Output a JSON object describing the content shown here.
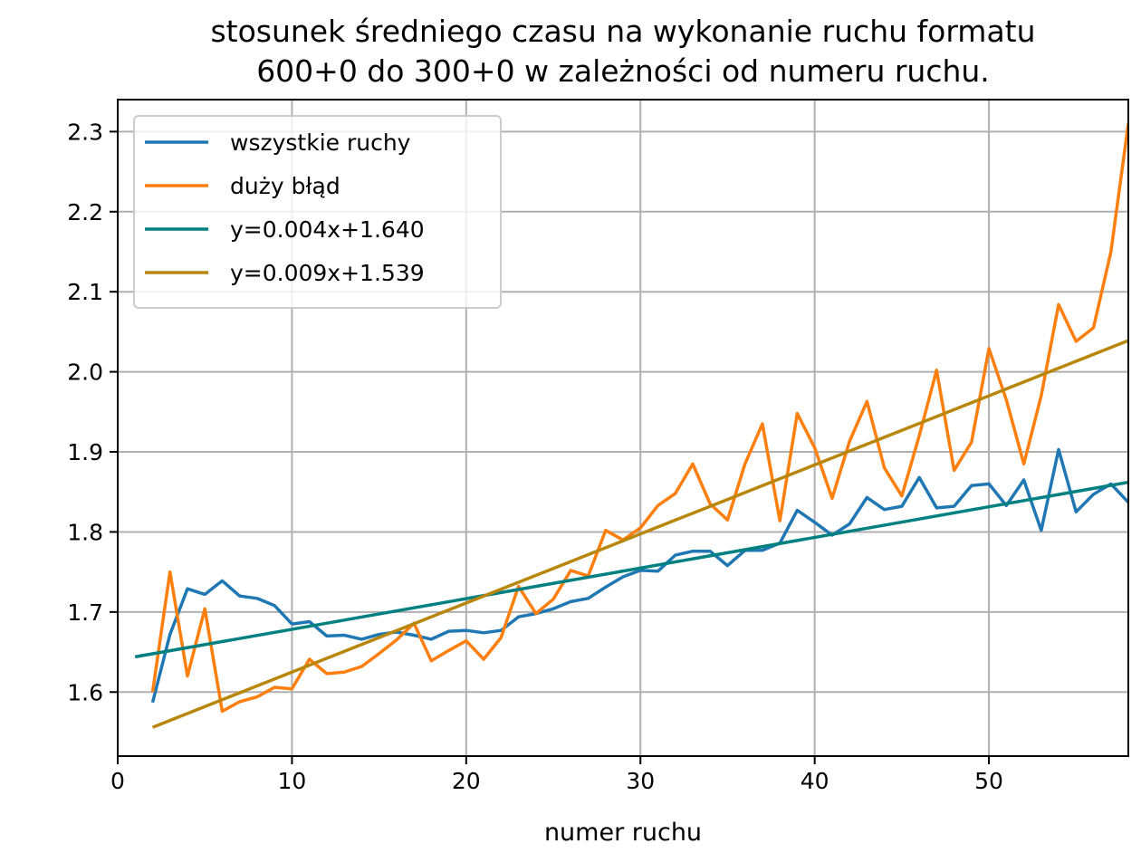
{
  "chart_data": {
    "type": "line",
    "title_lines": [
      "stosunek średniego czasu na wykonanie ruchu formatu",
      "600+0 do 300+0 w zależności od numeru ruchu."
    ],
    "xlabel": "numer ruchu",
    "ylabel": "",
    "xlim": [
      0,
      58
    ],
    "ylim": [
      1.52,
      2.34
    ],
    "xticks": [
      0,
      10,
      20,
      30,
      40,
      50
    ],
    "yticks": [
      1.6,
      1.7,
      1.8,
      1.9,
      2.0,
      2.1,
      2.2,
      2.3
    ],
    "grid": true,
    "legend_position": "upper-left",
    "series": [
      {
        "name": "wszystkie ruchy",
        "color": "#1f77b4",
        "x": [
          2,
          3,
          4,
          5,
          6,
          7,
          8,
          9,
          10,
          11,
          12,
          13,
          14,
          15,
          16,
          17,
          18,
          19,
          20,
          21,
          22,
          23,
          24,
          25,
          26,
          27,
          28,
          29,
          30,
          31,
          32,
          33,
          34,
          35,
          36,
          37,
          38,
          39,
          40,
          41,
          42,
          43,
          44,
          45,
          46,
          47,
          48,
          49,
          50,
          51,
          52,
          53,
          54,
          55,
          56,
          57,
          58
        ],
        "y": [
          1.587,
          1.672,
          1.729,
          1.722,
          1.739,
          1.72,
          1.717,
          1.708,
          1.685,
          1.688,
          1.67,
          1.671,
          1.666,
          1.672,
          1.675,
          1.671,
          1.666,
          1.676,
          1.677,
          1.674,
          1.677,
          1.694,
          1.698,
          1.704,
          1.713,
          1.717,
          1.731,
          1.744,
          1.752,
          1.751,
          1.771,
          1.776,
          1.776,
          1.758,
          1.777,
          1.777,
          1.786,
          1.827,
          1.812,
          1.796,
          1.81,
          1.843,
          1.828,
          1.832,
          1.868,
          1.83,
          1.832,
          1.858,
          1.86,
          1.833,
          1.865,
          1.802,
          1.903,
          1.825,
          1.847,
          1.86,
          1.837
        ]
      },
      {
        "name": "duży błąd",
        "color": "#ff7f0e",
        "x": [
          2,
          3,
          4,
          5,
          6,
          7,
          8,
          9,
          10,
          11,
          12,
          13,
          14,
          15,
          16,
          17,
          18,
          19,
          20,
          21,
          22,
          23,
          24,
          25,
          26,
          27,
          28,
          29,
          30,
          31,
          32,
          33,
          34,
          35,
          36,
          37,
          38,
          39,
          40,
          41,
          42,
          43,
          44,
          45,
          46,
          47,
          48,
          49,
          50,
          51,
          52,
          53,
          54,
          55,
          56,
          57,
          58
        ],
        "y": [
          1.6,
          1.75,
          1.62,
          1.704,
          1.576,
          1.588,
          1.594,
          1.606,
          1.604,
          1.641,
          1.623,
          1.625,
          1.632,
          1.648,
          1.665,
          1.686,
          1.639,
          1.652,
          1.664,
          1.641,
          1.668,
          1.732,
          1.698,
          1.716,
          1.752,
          1.745,
          1.802,
          1.79,
          1.805,
          1.833,
          1.848,
          1.885,
          1.835,
          1.815,
          1.885,
          1.935,
          1.814,
          1.948,
          1.905,
          1.842,
          1.913,
          1.963,
          1.88,
          1.845,
          1.92,
          2.002,
          1.877,
          1.912,
          2.029,
          1.965,
          1.885,
          1.97,
          2.084,
          2.038,
          2.055,
          2.15,
          2.31
        ]
      },
      {
        "name": "y=0.004x+1.640",
        "color": "#008080",
        "x": [
          1,
          58
        ],
        "y": [
          1.644,
          1.862
        ]
      },
      {
        "name": "y=0.009x+1.539",
        "color": "#b8860b",
        "x": [
          2,
          58
        ],
        "y": [
          1.556,
          2.039
        ]
      }
    ]
  }
}
